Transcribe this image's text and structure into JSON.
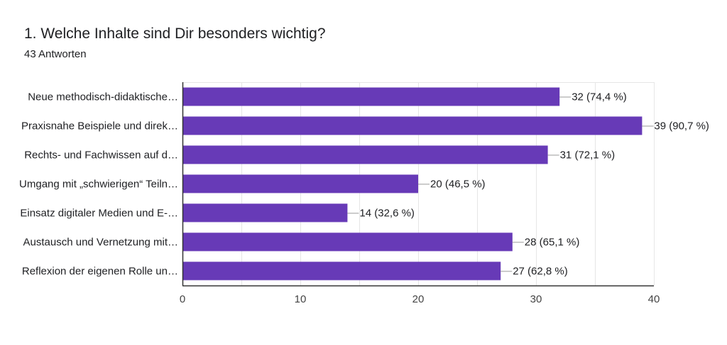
{
  "header": {
    "question": "1. Welche Inhalte sind Dir besonders wichtig?",
    "responses": "43 Antworten"
  },
  "colors": {
    "bar": "#673ab7",
    "grid": "#e6e6e6",
    "axis": "#333333",
    "leader": "#999999"
  },
  "chart_data": {
    "type": "bar",
    "orientation": "horizontal",
    "title": "1. Welche Inhalte sind Dir besonders wichtig?",
    "subtitle": "43 Antworten",
    "categories": [
      "Neue methodisch-didaktische…",
      "Praxisnahe Beispiele und direk…",
      "Rechts- und Fachwissen auf d…",
      "Umgang mit „schwierigen“ Teiln…",
      "Einsatz digitaler Medien und E-…",
      "Austausch und Vernetzung mit…",
      "Reflexion der eigenen Rolle un…"
    ],
    "values": [
      32,
      39,
      31,
      20,
      14,
      28,
      27
    ],
    "value_labels": [
      "32 (74,4 %)",
      "39 (90,7 %)",
      "31 (72,1 %)",
      "20 (46,5 %)",
      "14 (32,6 %)",
      "28 (65,1 %)",
      "27 (62,8 %)"
    ],
    "xlim": [
      0,
      40
    ],
    "xticks": [
      0,
      10,
      20,
      30,
      40
    ],
    "grid": true,
    "xlabel": "",
    "ylabel": ""
  }
}
